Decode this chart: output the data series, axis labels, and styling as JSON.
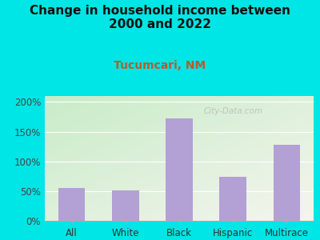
{
  "title": "Change in household income between\n2000 and 2022",
  "subtitle": "Tucumcari, NM",
  "categories": [
    "All",
    "White",
    "Black",
    "Hispanic",
    "Multirace"
  ],
  "values": [
    55,
    51,
    172,
    74,
    128
  ],
  "bar_color": "#b3a0d4",
  "title_fontsize": 11,
  "subtitle_fontsize": 10,
  "subtitle_color": "#b85c2a",
  "title_color": "#111111",
  "background_outer": "#00e5e5",
  "gradient_top_left": "#c8ecc8",
  "gradient_bottom_right": "#f5f5ee",
  "ylim": [
    0,
    210
  ],
  "yticks": [
    0,
    50,
    100,
    150,
    200
  ],
  "ytick_labels": [
    "0%",
    "50%",
    "100%",
    "150%",
    "200%"
  ],
  "watermark": "City-Data.com"
}
